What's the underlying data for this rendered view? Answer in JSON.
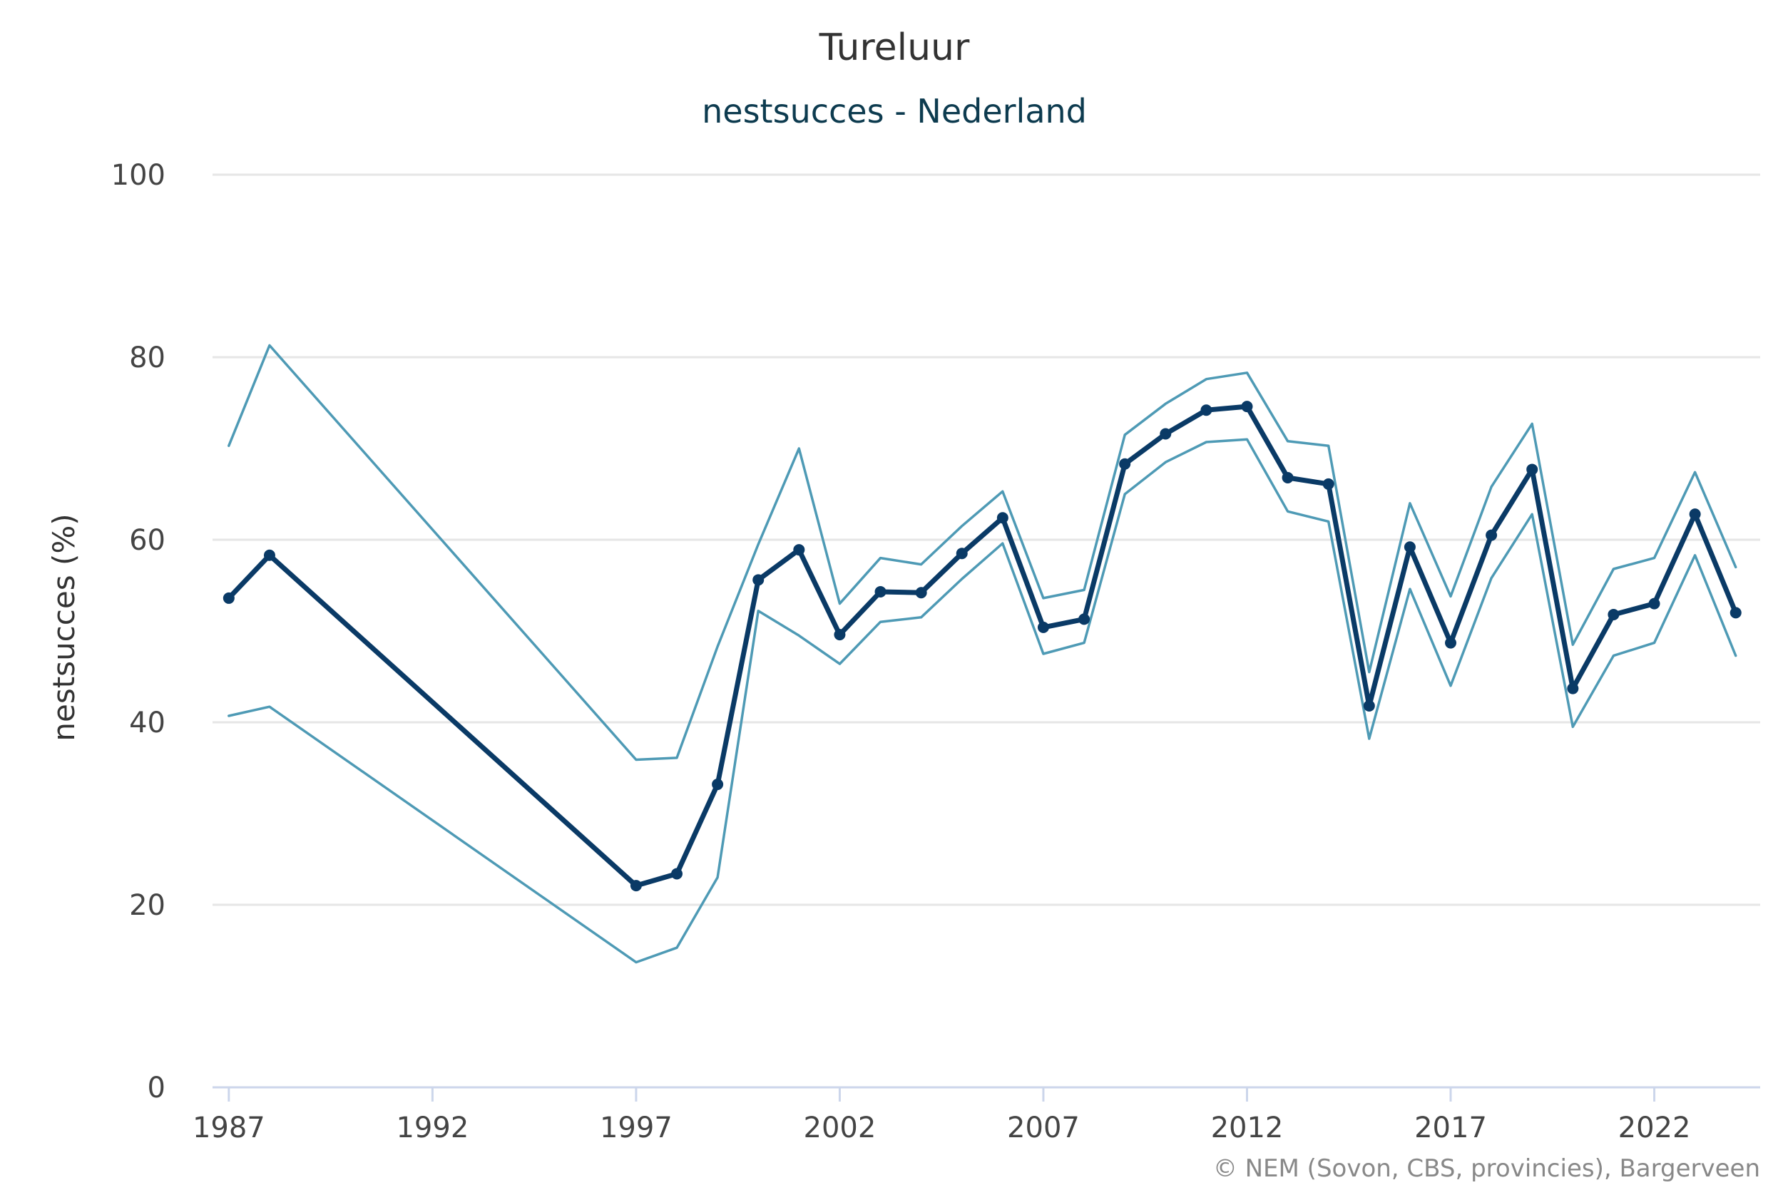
{
  "chart_data": {
    "type": "line",
    "title": "Tureluur",
    "subtitle": "nestsucces - Nederland",
    "ylabel": "nestsucces (%)",
    "xlabel": "",
    "ylim": [
      0,
      100
    ],
    "yticks": [
      0,
      20,
      40,
      60,
      80,
      100
    ],
    "xlim": [
      1986.6,
      2024.6
    ],
    "xticks": [
      1987,
      1992,
      1997,
      2002,
      2007,
      2012,
      2017,
      2022
    ],
    "grid": true,
    "legend": "none",
    "credits": "© NEM (Sovon, CBS, provincies), Bargerveen",
    "colors": {
      "main": "#0a3a66",
      "bounds": "#4e9ab5",
      "grid": "#e6e6e6",
      "axis": "#ccd6eb"
    },
    "series": [
      {
        "role": "estimate",
        "points": [
          [
            1987,
            53.6
          ],
          [
            1988,
            58.3
          ],
          [
            1997,
            22.1
          ],
          [
            1998,
            23.4
          ],
          [
            1999,
            33.2
          ],
          [
            2000,
            55.6
          ],
          [
            2001,
            58.9
          ],
          [
            2002,
            49.6
          ],
          [
            2003,
            54.3
          ],
          [
            2004,
            54.2
          ],
          [
            2005,
            58.5
          ],
          [
            2006,
            62.4
          ],
          [
            2007,
            50.4
          ],
          [
            2008,
            51.3
          ],
          [
            2009,
            68.3
          ],
          [
            2010,
            71.6
          ],
          [
            2011,
            74.2
          ],
          [
            2012,
            74.6
          ],
          [
            2013,
            66.8
          ],
          [
            2014,
            66.1
          ],
          [
            2015,
            41.8
          ],
          [
            2016,
            59.2
          ],
          [
            2017,
            48.7
          ],
          [
            2018,
            60.5
          ],
          [
            2019,
            67.7
          ],
          [
            2020,
            43.7
          ],
          [
            2021,
            51.8
          ],
          [
            2022,
            53.0
          ],
          [
            2023,
            62.8
          ],
          [
            2024,
            52.0
          ]
        ]
      },
      {
        "role": "upper",
        "points": [
          [
            1987,
            70.3
          ],
          [
            1988,
            81.3
          ],
          [
            1997,
            35.9
          ],
          [
            1998,
            36.1
          ],
          [
            1999,
            48.3
          ],
          [
            2000,
            59.5
          ],
          [
            2001,
            70.0
          ],
          [
            2002,
            53.0
          ],
          [
            2003,
            58.0
          ],
          [
            2004,
            57.3
          ],
          [
            2005,
            61.5
          ],
          [
            2006,
            65.3
          ],
          [
            2007,
            53.6
          ],
          [
            2008,
            54.5
          ],
          [
            2009,
            71.5
          ],
          [
            2010,
            74.9
          ],
          [
            2011,
            77.6
          ],
          [
            2012,
            78.3
          ],
          [
            2013,
            70.8
          ],
          [
            2014,
            70.3
          ],
          [
            2015,
            45.5
          ],
          [
            2016,
            64.0
          ],
          [
            2017,
            53.8
          ],
          [
            2018,
            65.8
          ],
          [
            2019,
            72.7
          ],
          [
            2020,
            48.5
          ],
          [
            2021,
            56.8
          ],
          [
            2022,
            58.0
          ],
          [
            2023,
            67.4
          ],
          [
            2024,
            57.0
          ]
        ]
      },
      {
        "role": "lower",
        "points": [
          [
            1987,
            40.7
          ],
          [
            1988,
            41.7
          ],
          [
            1997,
            13.7
          ],
          [
            1998,
            15.3
          ],
          [
            1999,
            23.0
          ],
          [
            2000,
            52.2
          ],
          [
            2001,
            49.5
          ],
          [
            2002,
            46.4
          ],
          [
            2003,
            51.0
          ],
          [
            2004,
            51.5
          ],
          [
            2005,
            55.7
          ],
          [
            2006,
            59.6
          ],
          [
            2007,
            47.5
          ],
          [
            2008,
            48.7
          ],
          [
            2009,
            65.0
          ],
          [
            2010,
            68.5
          ],
          [
            2011,
            70.7
          ],
          [
            2012,
            71.0
          ],
          [
            2013,
            63.1
          ],
          [
            2014,
            62.0
          ],
          [
            2015,
            38.2
          ],
          [
            2016,
            54.6
          ],
          [
            2017,
            44.0
          ],
          [
            2018,
            55.8
          ],
          [
            2019,
            62.8
          ],
          [
            2020,
            39.5
          ],
          [
            2021,
            47.3
          ],
          [
            2022,
            48.7
          ],
          [
            2023,
            58.3
          ],
          [
            2024,
            47.3
          ]
        ]
      }
    ]
  }
}
